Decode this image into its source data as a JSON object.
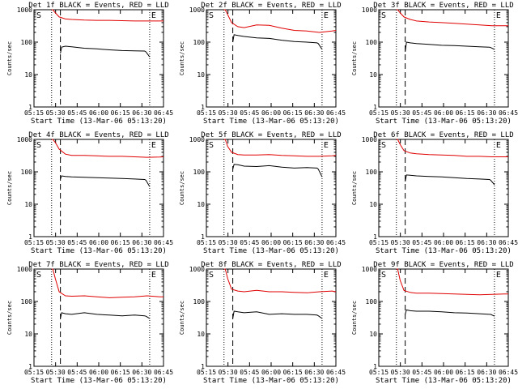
{
  "page": {
    "background": "#ffffff"
  },
  "colors": {
    "events": "#000000",
    "lld": "#e00000",
    "axis": "#000000"
  },
  "common": {
    "ylabel": "Counts/sec",
    "xlabel": "Start Time (13-Mar-06 05:13:20)",
    "x_ticks": [
      "05:15",
      "05:30",
      "05:45",
      "06:00",
      "06:15",
      "06:30",
      "06:45"
    ],
    "y_ticks": [
      "1",
      "10",
      "100",
      "1000"
    ],
    "marker_start": "S",
    "marker_end": "E"
  },
  "chart_data": [
    {
      "type": "line",
      "title": "Det 1f BLACK = Events, RED = LLD",
      "ylim": [
        1,
        1000
      ],
      "yscale": "log",
      "x_unit": "minutes after 05:13:20",
      "xlim": [
        0,
        103
      ],
      "markers": {
        "dotted": [
          14,
          92
        ],
        "dashed": [
          21
        ]
      },
      "series": [
        {
          "name": "Events",
          "color": "#000000",
          "x": [
            21,
            22,
            25,
            30,
            40,
            50,
            60,
            70,
            80,
            88,
            89,
            92
          ],
          "y": [
            45,
            70,
            75,
            72,
            65,
            62,
            58,
            55,
            54,
            53,
            50,
            35
          ]
        },
        {
          "name": "LLD",
          "color": "#e00000",
          "x": [
            14,
            15,
            17,
            20,
            25,
            30,
            40,
            50,
            60,
            70,
            80,
            90,
            100,
            103
          ],
          "y": [
            1000,
            1000,
            800,
            600,
            520,
            500,
            480,
            470,
            470,
            460,
            450,
            450,
            450,
            450
          ]
        }
      ]
    },
    {
      "type": "line",
      "title": "Det 2f BLACK = Events, RED = LLD",
      "ylim": [
        1,
        1000
      ],
      "yscale": "log",
      "x_unit": "minutes after 05:13:20",
      "xlim": [
        0,
        103
      ],
      "markers": {
        "dotted": [
          14,
          92
        ],
        "dashed": [
          21
        ]
      },
      "series": [
        {
          "name": "Events",
          "color": "#000000",
          "x": [
            21,
            22,
            25,
            30,
            40,
            50,
            60,
            70,
            80,
            88,
            89,
            92
          ],
          "y": [
            100,
            170,
            160,
            150,
            135,
            130,
            115,
            105,
            100,
            95,
            90,
            60
          ]
        },
        {
          "name": "LLD",
          "color": "#e00000",
          "x": [
            14,
            15,
            17,
            20,
            25,
            30,
            40,
            50,
            60,
            70,
            80,
            90,
            100,
            103
          ],
          "y": [
            1000,
            1000,
            700,
            400,
            300,
            280,
            340,
            330,
            270,
            230,
            220,
            200,
            220,
            230
          ]
        }
      ]
    },
    {
      "type": "line",
      "title": "Det 3f BLACK = Events, RED = LLD",
      "ylim": [
        1,
        1000
      ],
      "yscale": "log",
      "x_unit": "minutes after 05:13:20",
      "xlim": [
        0,
        103
      ],
      "markers": {
        "dotted": [
          14,
          92
        ],
        "dashed": [
          21
        ]
      },
      "series": [
        {
          "name": "Events",
          "color": "#000000",
          "x": [
            21,
            22,
            25,
            30,
            40,
            50,
            60,
            70,
            80,
            88,
            89,
            92
          ],
          "y": [
            50,
            100,
            95,
            90,
            85,
            80,
            78,
            75,
            72,
            70,
            68,
            60
          ]
        },
        {
          "name": "LLD",
          "color": "#e00000",
          "x": [
            14,
            15,
            17,
            20,
            25,
            30,
            40,
            50,
            60,
            70,
            80,
            90,
            100,
            103
          ],
          "y": [
            1000,
            1000,
            800,
            600,
            500,
            450,
            420,
            400,
            380,
            360,
            340,
            320,
            320,
            320
          ]
        }
      ]
    },
    {
      "type": "line",
      "title": "Det 4f BLACK = Events, RED = LLD",
      "ylim": [
        1,
        1000
      ],
      "yscale": "log",
      "x_unit": "minutes after 05:13:20",
      "xlim": [
        0,
        103
      ],
      "markers": {
        "dotted": [
          14,
          92
        ],
        "dashed": [
          21
        ]
      },
      "series": [
        {
          "name": "Events",
          "color": "#000000",
          "x": [
            21,
            22,
            25,
            30,
            40,
            50,
            60,
            70,
            80,
            88,
            89,
            92
          ],
          "y": [
            60,
            75,
            72,
            70,
            68,
            66,
            64,
            62,
            60,
            58,
            55,
            35
          ]
        },
        {
          "name": "LLD",
          "color": "#e00000",
          "x": [
            14,
            15,
            17,
            20,
            25,
            30,
            40,
            50,
            60,
            70,
            80,
            90,
            100,
            103
          ],
          "y": [
            1000,
            1000,
            800,
            500,
            350,
            320,
            320,
            310,
            300,
            300,
            290,
            280,
            285,
            290
          ]
        }
      ]
    },
    {
      "type": "line",
      "title": "Det 5f BLACK = Events, RED = LLD",
      "ylim": [
        1,
        1000
      ],
      "yscale": "log",
      "x_unit": "minutes after 05:13:20",
      "xlim": [
        0,
        103
      ],
      "markers": {
        "dotted": [
          14,
          92
        ],
        "dashed": [
          21
        ]
      },
      "series": [
        {
          "name": "Events",
          "color": "#000000",
          "x": [
            21,
            22,
            25,
            30,
            40,
            50,
            60,
            70,
            80,
            88,
            89,
            92
          ],
          "y": [
            120,
            170,
            165,
            150,
            145,
            155,
            140,
            130,
            135,
            130,
            120,
            70
          ]
        },
        {
          "name": "LLD",
          "color": "#e00000",
          "x": [
            14,
            15,
            17,
            20,
            25,
            30,
            40,
            50,
            60,
            70,
            80,
            90,
            100,
            103
          ],
          "y": [
            1000,
            1000,
            600,
            400,
            340,
            330,
            330,
            340,
            320,
            310,
            300,
            300,
            310,
            320
          ]
        }
      ]
    },
    {
      "type": "line",
      "title": "Det 6f BLACK = Events, RED = LLD",
      "ylim": [
        1,
        1000
      ],
      "yscale": "log",
      "x_unit": "minutes after 05:13:20",
      "xlim": [
        0,
        103
      ],
      "markers": {
        "dotted": [
          14,
          92
        ],
        "dashed": [
          21
        ]
      },
      "series": [
        {
          "name": "Events",
          "color": "#000000",
          "x": [
            21,
            22,
            25,
            30,
            40,
            50,
            60,
            70,
            80,
            88,
            89,
            92
          ],
          "y": [
            50,
            80,
            78,
            75,
            72,
            70,
            66,
            62,
            60,
            58,
            55,
            40
          ]
        },
        {
          "name": "LLD",
          "color": "#e00000",
          "x": [
            14,
            15,
            17,
            20,
            25,
            30,
            40,
            50,
            60,
            70,
            80,
            90,
            100,
            103
          ],
          "y": [
            1000,
            1000,
            700,
            450,
            380,
            360,
            340,
            330,
            320,
            300,
            300,
            290,
            290,
            290
          ]
        }
      ]
    },
    {
      "type": "line",
      "title": "Det 7f BLACK = Events, RED = LLD",
      "ylim": [
        1,
        1000
      ],
      "yscale": "log",
      "x_unit": "minutes after 05:13:20",
      "xlim": [
        0,
        103
      ],
      "markers": {
        "dotted": [
          14,
          92
        ],
        "dashed": [
          21
        ]
      },
      "series": [
        {
          "name": "Events",
          "color": "#000000",
          "x": [
            21,
            22,
            25,
            30,
            40,
            50,
            60,
            70,
            80,
            88,
            89,
            92
          ],
          "y": [
            30,
            45,
            42,
            40,
            45,
            40,
            38,
            36,
            38,
            36,
            35,
            30
          ]
        },
        {
          "name": "LLD",
          "color": "#e00000",
          "x": [
            14,
            15,
            17,
            20,
            25,
            30,
            40,
            50,
            60,
            70,
            80,
            90,
            100,
            103
          ],
          "y": [
            1000,
            1000,
            500,
            200,
            150,
            145,
            150,
            140,
            130,
            135,
            140,
            150,
            140,
            140
          ]
        }
      ]
    },
    {
      "type": "line",
      "title": "Det 8f BLACK = Events, RED = LLD",
      "ylim": [
        1,
        1000
      ],
      "yscale": "log",
      "x_unit": "minutes after 05:13:20",
      "xlim": [
        0,
        103
      ],
      "markers": {
        "dotted": [
          14,
          92
        ],
        "dashed": [
          21
        ]
      },
      "series": [
        {
          "name": "Events",
          "color": "#000000",
          "x": [
            21,
            22,
            25,
            30,
            40,
            50,
            60,
            70,
            80,
            88,
            89,
            92
          ],
          "y": [
            30,
            50,
            48,
            45,
            48,
            40,
            42,
            40,
            40,
            38,
            36,
            30
          ]
        },
        {
          "name": "LLD",
          "color": "#e00000",
          "x": [
            14,
            15,
            17,
            20,
            25,
            30,
            40,
            50,
            60,
            70,
            80,
            90,
            100,
            103
          ],
          "y": [
            1000,
            1000,
            500,
            240,
            210,
            200,
            220,
            200,
            200,
            190,
            185,
            200,
            210,
            200
          ]
        }
      ]
    },
    {
      "type": "line",
      "title": "Det 9f BLACK = Events, RED = LLD",
      "ylim": [
        1,
        1000
      ],
      "yscale": "log",
      "x_unit": "minutes after 05:13:20",
      "xlim": [
        0,
        103
      ],
      "markers": {
        "dotted": [
          14,
          92
        ],
        "dashed": [
          21
        ]
      },
      "series": [
        {
          "name": "Events",
          "color": "#000000",
          "x": [
            21,
            22,
            25,
            30,
            40,
            50,
            60,
            70,
            80,
            88,
            89,
            92
          ],
          "y": [
            40,
            55,
            52,
            50,
            50,
            48,
            45,
            44,
            42,
            40,
            40,
            35
          ]
        },
        {
          "name": "LLD",
          "color": "#e00000",
          "x": [
            14,
            15,
            17,
            20,
            25,
            30,
            40,
            50,
            60,
            70,
            80,
            90,
            100,
            103
          ],
          "y": [
            1000,
            1000,
            450,
            220,
            190,
            180,
            180,
            175,
            170,
            165,
            160,
            165,
            170,
            170
          ]
        }
      ]
    }
  ]
}
